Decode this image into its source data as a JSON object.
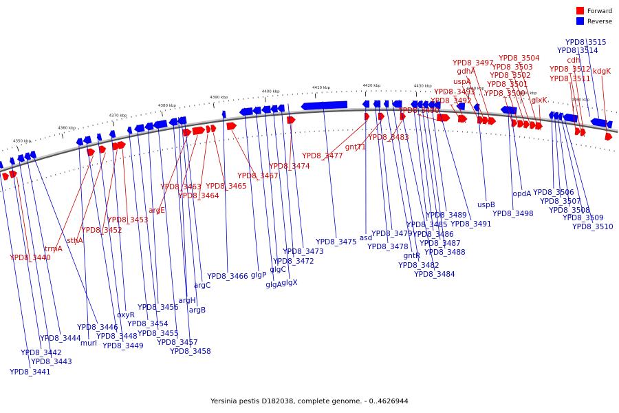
{
  "legend": [
    {
      "label": "Forward",
      "color": "#ff0000"
    },
    {
      "label": "Reverse",
      "color": "#0000ff"
    }
  ],
  "caption": "Yersinia pestis D182038, complete genome. - 0..4626944",
  "ticks": [
    "4350 kbp",
    "4360 kbp",
    "4370 kbp",
    "4380 kbp",
    "4390 kbp",
    "4400 kbp",
    "4410 kbp",
    "4420 kbp",
    "4430 kbp",
    "4440 kbp",
    "4450 kbp",
    "4460 kbp"
  ],
  "forward_genes": [
    "YPD8_3440",
    "trmA",
    "sthA",
    "YPD8_3452",
    "YPD8_3453",
    "argE",
    "YPD8_3463",
    "YPD8_3464",
    "YPD8_3465",
    "YPD8_3467",
    "YPD8_3474",
    "YPD8_3477",
    "gntT1",
    "YPD8_3483",
    "YPD8_3490",
    "YPD8_3492",
    "YPD8_3493",
    "uspA",
    "gdhA",
    "YPD8_3497",
    "YPD8_3500",
    "YPD8_3501",
    "YPD8_3502",
    "YPD8_3503",
    "YPD8_3504",
    "glxK",
    "YPD8_3511",
    "YPD8_3512",
    "cdh",
    "kdgK"
  ],
  "reverse_genes": [
    "YPD8_3441",
    "YPD8_3442",
    "YPD8_3443",
    "YPD8_3444",
    "YPD8_3446",
    "murI",
    "YPD8_3448",
    "YPD8_3449",
    "oxyR",
    "YPD8_3454",
    "YPD8_3455",
    "YPD8_3456",
    "YPD8_3457",
    "YPD8_3458",
    "argH",
    "argB",
    "argC",
    "YPD8_3466",
    "glgP",
    "glgA",
    "glgC",
    "glgX",
    "YPD8_3472",
    "YPD8_3473",
    "YPD8_3475",
    "asd",
    "YPD8_3478",
    "YPD8_3479",
    "gntR",
    "YPD8_3482",
    "YPD8_3484",
    "YPD8_3485",
    "YPD8_3486",
    "YPD8_3487",
    "YPD8_3488",
    "YPD8_3489",
    "YPD8_3491",
    "uspB",
    "YPD8_3498",
    "opdA",
    "YPD8_3506",
    "YPD8_3507",
    "YPD8_3508",
    "YPD8_3509",
    "YPD8_3510",
    "YPD8_3514",
    "YPD8_3515"
  ]
}
